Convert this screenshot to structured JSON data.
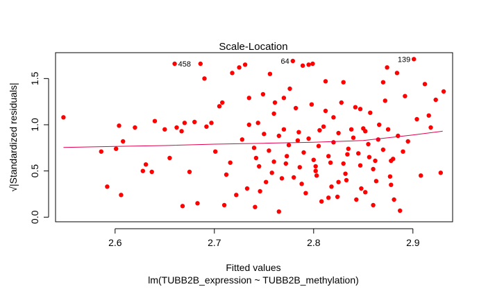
{
  "chart_data": {
    "type": "scatter",
    "title": "Scale-Location",
    "xlabel": "Fitted values",
    "xlabel2": "lm(TUBB2B_expression ~ TUBB2B_methylation)",
    "ylabel": "√|Standardized residuals|",
    "xlim": [
      2.54,
      2.94
    ],
    "ylim": [
      -0.05,
      1.78
    ],
    "xticks": [
      2.6,
      2.7,
      2.8,
      2.9
    ],
    "xtick_labels": [
      "2.6",
      "2.7",
      "2.8",
      "2.9"
    ],
    "yticks": [
      0.0,
      0.5,
      1.0,
      1.5
    ],
    "ytick_labels": [
      "0.0",
      "0.5",
      "1.0",
      "1.5"
    ],
    "grid": false,
    "point_color": "#ff0000",
    "smooth_color": "#e0004a",
    "points_note": "approximate reconstruction of plotted residual points",
    "points": [
      [
        2.548,
        1.08
      ],
      [
        2.586,
        0.71
      ],
      [
        2.592,
        0.33
      ],
      [
        2.601,
        0.74
      ],
      [
        2.604,
        0.99
      ],
      [
        2.606,
        0.24
      ],
      [
        2.608,
        0.82
      ],
      [
        2.62,
        0.97
      ],
      [
        2.628,
        0.5
      ],
      [
        2.631,
        0.57
      ],
      [
        2.637,
        0.49
      ],
      [
        2.64,
        1.04
      ],
      [
        2.65,
        0.95
      ],
      [
        2.655,
        0.64
      ],
      [
        2.66,
        1.66
      ],
      [
        2.662,
        0.97
      ],
      [
        2.667,
        0.93
      ],
      [
        2.668,
        0.12
      ],
      [
        2.67,
        1.02
      ],
      [
        2.675,
        0.49
      ],
      [
        2.68,
        1.03
      ],
      [
        2.683,
        0.15
      ],
      [
        2.686,
        1.66
      ],
      [
        2.69,
        1.5
      ],
      [
        2.692,
        0.98
      ],
      [
        2.697,
        1.02
      ],
      [
        2.701,
        0.71
      ],
      [
        2.705,
        1.2
      ],
      [
        2.708,
        1.24
      ],
      [
        2.71,
        0.13
      ],
      [
        2.712,
        0.46
      ],
      [
        2.716,
        0.59
      ],
      [
        2.718,
        1.56
      ],
      [
        2.722,
        0.24
      ],
      [
        2.725,
        1.62
      ],
      [
        2.728,
        0.84
      ],
      [
        2.731,
        1.65
      ],
      [
        2.733,
        0.31
      ],
      [
        2.735,
        1.29
      ],
      [
        2.741,
        0.11
      ],
      [
        2.744,
        1.02
      ],
      [
        2.749,
        1.33
      ],
      [
        2.752,
        0.38
      ],
      [
        2.756,
        1.55
      ],
      [
        2.761,
        1.24
      ],
      [
        2.765,
        0.06
      ],
      [
        2.77,
        1.29
      ],
      [
        2.773,
        0.66
      ],
      [
        2.776,
        1.39
      ],
      [
        2.779,
        1.69
      ],
      [
        2.78,
        0.43
      ],
      [
        2.784,
        0.83
      ],
      [
        2.789,
        1.64
      ],
      [
        2.795,
        1.65
      ],
      [
        2.799,
        1.66
      ],
      [
        2.802,
        0.55
      ],
      [
        2.806,
        0.94
      ],
      [
        2.812,
        1.47
      ],
      [
        2.815,
        0.21
      ],
      [
        2.82,
        1.08
      ],
      [
        2.825,
        0.38
      ],
      [
        2.83,
        1.46
      ],
      [
        2.834,
        0.68
      ],
      [
        2.838,
        0.95
      ],
      [
        2.843,
        0.19
      ],
      [
        2.847,
        1.17
      ],
      [
        2.852,
        0.93
      ],
      [
        2.856,
        0.65
      ],
      [
        2.86,
        0.13
      ],
      [
        2.866,
        1.0
      ],
      [
        2.87,
        1.46
      ],
      [
        2.874,
        1.62
      ],
      [
        2.878,
        0.61
      ],
      [
        2.881,
        0.19
      ],
      [
        2.884,
        1.56
      ],
      [
        2.887,
        0.07
      ],
      [
        2.892,
        1.31
      ],
      [
        2.895,
        0.82
      ],
      [
        2.901,
        1.71
      ],
      [
        2.904,
        1.06
      ],
      [
        2.908,
        0.45
      ],
      [
        2.912,
        1.44
      ],
      [
        2.916,
        1.1
      ],
      [
        2.918,
        0.97
      ],
      [
        2.923,
        1.27
      ],
      [
        2.928,
        0.48
      ],
      [
        2.931,
        1.36
      ],
      [
        2.735,
        1.0
      ],
      [
        2.74,
        0.75
      ],
      [
        2.745,
        0.55
      ],
      [
        2.75,
        0.9
      ],
      [
        2.755,
        0.72
      ],
      [
        2.76,
        0.6
      ],
      [
        2.765,
        0.88
      ],
      [
        2.77,
        0.95
      ],
      [
        2.775,
        0.78
      ],
      [
        2.785,
        0.92
      ],
      [
        2.79,
        0.7
      ],
      [
        2.795,
        0.85
      ],
      [
        2.8,
        0.62
      ],
      [
        2.805,
        0.77
      ],
      [
        2.81,
        0.98
      ],
      [
        2.815,
        0.66
      ],
      [
        2.82,
        0.81
      ],
      [
        2.825,
        0.91
      ],
      [
        2.83,
        0.58
      ],
      [
        2.835,
        0.74
      ],
      [
        2.84,
        0.86
      ],
      [
        2.845,
        0.69
      ],
      [
        2.85,
        0.96
      ],
      [
        2.855,
        0.79
      ],
      [
        2.86,
        0.52
      ],
      [
        2.865,
        0.84
      ],
      [
        2.87,
        0.73
      ],
      [
        2.875,
        0.95
      ],
      [
        2.88,
        0.63
      ],
      [
        2.885,
        0.88
      ],
      [
        2.89,
        0.71
      ],
      [
        2.76,
        1.12
      ],
      [
        2.782,
        1.18
      ],
      [
        2.798,
        1.22
      ],
      [
        2.812,
        1.15
      ],
      [
        2.828,
        1.24
      ],
      [
        2.842,
        1.19
      ],
      [
        2.857,
        1.13
      ],
      [
        2.872,
        1.26
      ],
      [
        2.768,
        0.42
      ],
      [
        2.788,
        0.36
      ],
      [
        2.803,
        0.45
      ],
      [
        2.818,
        0.33
      ],
      [
        2.833,
        0.4
      ],
      [
        2.848,
        0.31
      ],
      [
        2.863,
        0.39
      ],
      [
        2.746,
        0.28
      ],
      [
        2.792,
        0.26
      ],
      [
        2.808,
        0.17
      ],
      [
        2.824,
        0.22
      ],
      [
        2.852,
        0.27
      ],
      [
        2.878,
        0.35
      ],
      [
        2.742,
        0.64
      ],
      [
        2.758,
        0.48
      ],
      [
        2.772,
        0.58
      ],
      [
        2.786,
        0.54
      ],
      [
        2.802,
        0.5
      ],
      [
        2.817,
        0.59
      ],
      [
        2.832,
        0.47
      ],
      [
        2.847,
        0.56
      ],
      [
        2.862,
        0.61
      ],
      [
        2.877,
        0.44
      ]
    ],
    "smooth": [
      [
        2.548,
        0.755
      ],
      [
        2.6,
        0.765
      ],
      [
        2.65,
        0.775
      ],
      [
        2.7,
        0.79
      ],
      [
        2.75,
        0.8
      ],
      [
        2.8,
        0.81
      ],
      [
        2.85,
        0.83
      ],
      [
        2.9,
        0.89
      ],
      [
        2.93,
        0.93
      ]
    ],
    "labels": [
      {
        "text": "458",
        "x": 2.66,
        "y": 1.66
      },
      {
        "text": "64",
        "x": 2.779,
        "y": 1.69
      },
      {
        "text": "139",
        "x": 2.901,
        "y": 1.71
      }
    ]
  }
}
